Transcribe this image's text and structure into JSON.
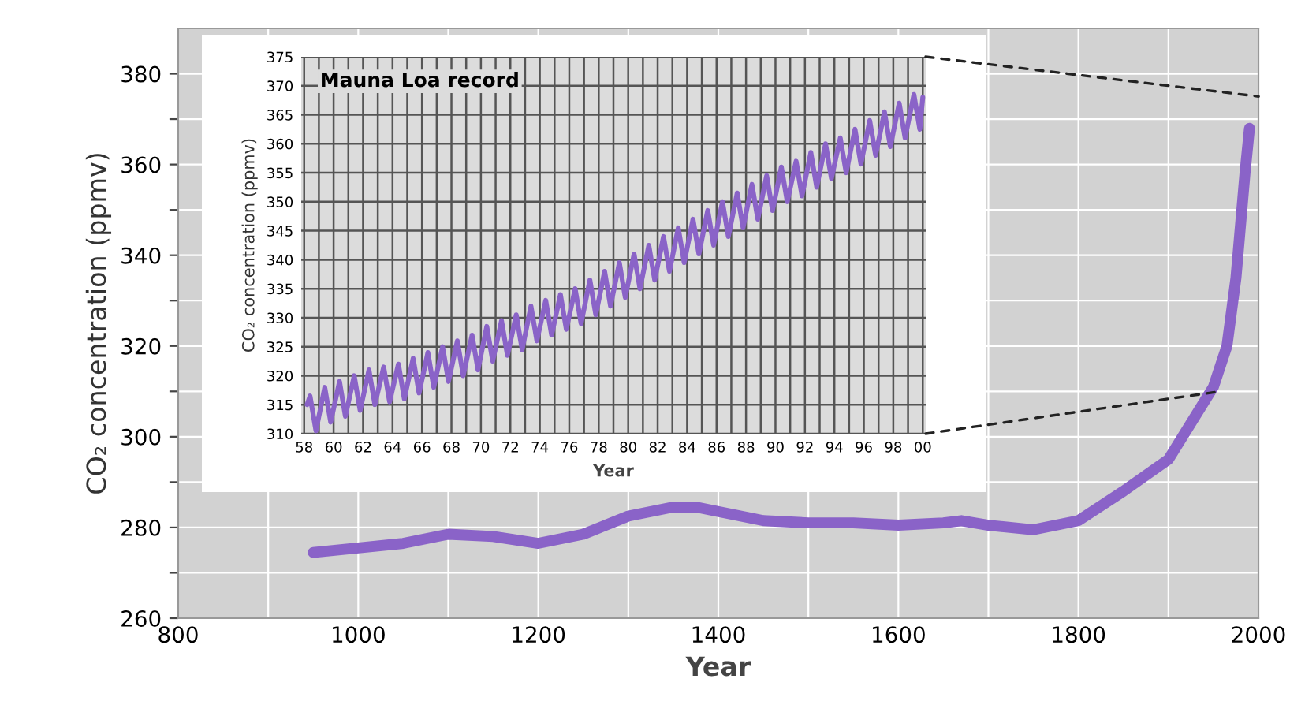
{
  "chart_data": [
    {
      "type": "line",
      "xlabel": "Year",
      "ylabel": "CO₂ concentration (ppmv)",
      "xlim": [
        800,
        2000
      ],
      "ylim": [
        260,
        390
      ],
      "xticks": [
        800,
        {
          "value": 900,
          "label": null
        },
        1000,
        {
          "value": 1100,
          "label": null
        },
        1200,
        {
          "value": 1300,
          "label": null
        },
        1400,
        {
          "value": 1500,
          "label": null
        },
        1600,
        {
          "value": 1700,
          "label": null
        },
        1800,
        {
          "value": 1900,
          "label": null
        },
        2000
      ],
      "yticks": [
        260,
        {
          "value": 270,
          "label": null
        },
        280,
        {
          "value": 290,
          "label": null
        },
        300,
        {
          "value": 310,
          "label": null
        },
        320,
        {
          "value": 330,
          "label": null
        },
        340,
        {
          "value": 350,
          "label": null
        },
        360,
        {
          "value": 370,
          "label": null
        },
        380
      ],
      "grid": true,
      "series": [
        {
          "color": "#8a63c8",
          "x": [
            950,
            1000,
            1050,
            1100,
            1150,
            1200,
            1250,
            1300,
            1350,
            1375,
            1400,
            1450,
            1500,
            1550,
            1600,
            1650,
            1670,
            1700,
            1750,
            1800,
            1850,
            1900,
            1950,
            1965,
            1975,
            1985,
            1990
          ],
          "values": [
            274.5,
            275.5,
            276.5,
            278.5,
            278,
            276.5,
            278.5,
            282.5,
            284.5,
            284.5,
            283.5,
            281.5,
            281,
            281,
            280.5,
            281,
            281.5,
            280.5,
            279.5,
            281.5,
            288,
            295,
            311,
            320,
            335,
            358,
            368
          ]
        }
      ]
    },
    {
      "type": "line",
      "title": "Mauna Loa record",
      "xlabel": "Year",
      "ylabel": "CO₂ concentration (ppmv)",
      "xlim": [
        1957.8,
        2000.2
      ],
      "ylim": [
        310,
        375
      ],
      "xticks": [
        {
          "value": 1958,
          "label": "58"
        },
        {
          "value": 1959,
          "label": null
        },
        {
          "value": 1960,
          "label": "60"
        },
        {
          "value": 1961,
          "label": null
        },
        {
          "value": 1962,
          "label": "62"
        },
        {
          "value": 1963,
          "label": null
        },
        {
          "value": 1964,
          "label": "64"
        },
        {
          "value": 1965,
          "label": null
        },
        {
          "value": 1966,
          "label": "66"
        },
        {
          "value": 1967,
          "label": null
        },
        {
          "value": 1968,
          "label": "68"
        },
        {
          "value": 1969,
          "label": null
        },
        {
          "value": 1970,
          "label": "70"
        },
        {
          "value": 1971,
          "label": null
        },
        {
          "value": 1972,
          "label": "72"
        },
        {
          "value": 1973,
          "label": null
        },
        {
          "value": 1974,
          "label": "74"
        },
        {
          "value": 1975,
          "label": null
        },
        {
          "value": 1976,
          "label": "76"
        },
        {
          "value": 1977,
          "label": null
        },
        {
          "value": 1978,
          "label": "78"
        },
        {
          "value": 1979,
          "label": null
        },
        {
          "value": 1980,
          "label": "80"
        },
        {
          "value": 1981,
          "label": null
        },
        {
          "value": 1982,
          "label": "82"
        },
        {
          "value": 1983,
          "label": null
        },
        {
          "value": 1984,
          "label": "84"
        },
        {
          "value": 1985,
          "label": null
        },
        {
          "value": 1986,
          "label": "86"
        },
        {
          "value": 1987,
          "label": null
        },
        {
          "value": 1988,
          "label": "88"
        },
        {
          "value": 1989,
          "label": null
        },
        {
          "value": 1990,
          "label": "90"
        },
        {
          "value": 1991,
          "label": null
        },
        {
          "value": 1992,
          "label": "92"
        },
        {
          "value": 1993,
          "label": null
        },
        {
          "value": 1994,
          "label": "94"
        },
        {
          "value": 1995,
          "label": null
        },
        {
          "value": 1996,
          "label": "96"
        },
        {
          "value": 1997,
          "label": null
        },
        {
          "value": 1998,
          "label": "98"
        },
        {
          "value": 1999,
          "label": null
        },
        {
          "value": 2000,
          "label": "00"
        }
      ],
      "yticks": [
        310,
        315,
        320,
        325,
        330,
        335,
        340,
        345,
        350,
        355,
        360,
        365,
        370,
        375
      ],
      "grid": true,
      "series": [
        {
          "color": "#8a63c8",
          "x": [
            1958.2,
            1958.4,
            1958.8,
            1959.4,
            1959.8,
            1960.4,
            1960.8,
            1961.4,
            1961.8,
            1962.4,
            1962.8,
            1963.4,
            1963.8,
            1964.4,
            1964.8,
            1965.4,
            1965.8,
            1966.4,
            1966.8,
            1967.4,
            1967.8,
            1968.4,
            1968.8,
            1969.4,
            1969.8,
            1970.4,
            1970.8,
            1971.4,
            1971.8,
            1972.4,
            1972.8,
            1973.4,
            1973.8,
            1974.4,
            1974.8,
            1975.4,
            1975.8,
            1976.4,
            1976.8,
            1977.4,
            1977.8,
            1978.4,
            1978.8,
            1979.4,
            1979.8,
            1980.4,
            1980.8,
            1981.4,
            1981.8,
            1982.4,
            1982.8,
            1983.4,
            1983.8,
            1984.4,
            1984.8,
            1985.4,
            1985.8,
            1986.4,
            1986.8,
            1987.4,
            1987.8,
            1988.4,
            1988.8,
            1989.4,
            1989.8,
            1990.4,
            1990.8,
            1991.4,
            1991.8,
            1992.4,
            1992.8,
            1993.4,
            1993.8,
            1994.4,
            1994.8,
            1995.4,
            1995.8,
            1996.4,
            1996.8,
            1997.4,
            1997.8,
            1998.4,
            1998.8,
            1999.4,
            1999.8,
            2000.0
          ],
          "values": [
            315,
            316.5,
            310.5,
            318,
            312,
            319,
            313,
            320,
            314,
            321,
            315,
            321.5,
            315.5,
            322,
            316,
            323,
            317,
            324,
            318,
            325,
            319,
            326,
            320,
            327,
            321,
            328.5,
            322.5,
            329.5,
            323.5,
            330.5,
            324.5,
            332,
            326,
            333,
            327,
            334,
            328,
            335,
            329,
            336.5,
            330.5,
            338,
            332,
            339.5,
            333.5,
            341,
            335,
            342.5,
            336.5,
            344,
            338,
            345.5,
            339.5,
            347,
            341,
            348.5,
            342.5,
            350,
            344,
            351.5,
            345.5,
            353,
            347,
            354.5,
            348.5,
            356,
            350,
            357,
            351,
            358.5,
            352.5,
            360,
            354,
            361,
            355,
            362.5,
            356.5,
            364,
            358,
            365.5,
            359.5,
            367,
            361,
            368.5,
            362.5,
            368
          ]
        }
      ]
    }
  ]
}
